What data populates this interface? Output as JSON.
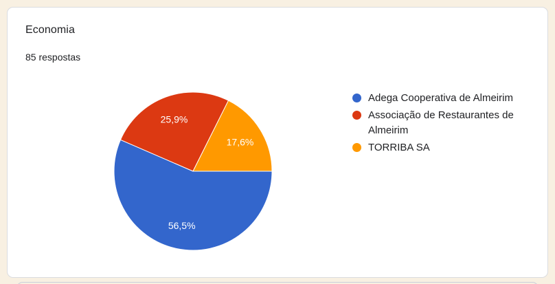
{
  "card": {
    "title": "Economia",
    "subtitle": "85 respostas"
  },
  "chart_data": {
    "type": "pie",
    "title": "Economia",
    "subtitle": "85 respostas",
    "categories": [
      "Adega Cooperativa de Almeirim",
      "Associação de Restaurantes de Almeirim",
      "TORRIBA SA"
    ],
    "values": [
      56.5,
      25.9,
      17.6
    ],
    "value_labels": [
      "56,5%",
      "25,9%",
      "17,6%"
    ],
    "colors": [
      "#3366CC",
      "#DC3912",
      "#FF9900"
    ],
    "slice_label_color": "#FFFFFF",
    "legend_position": "right",
    "start_angle_deg": 0,
    "direction": "clockwise",
    "total_responses": 85
  },
  "theme": {
    "page_background": "#F8F0E2",
    "card_background": "#FFFFFF",
    "card_border": "#DADCE0",
    "text_color": "#202124",
    "next_card_edge_color": "#C9CEDA"
  }
}
